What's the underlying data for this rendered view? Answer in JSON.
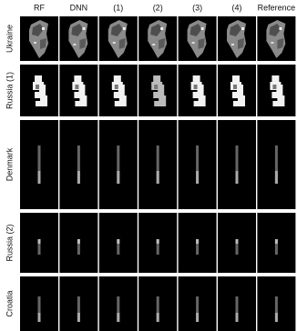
{
  "figure": {
    "columns": [
      "RF",
      "DNN",
      "(1)",
      "(2)",
      "(3)",
      "(4)",
      "Reference"
    ],
    "rows": [
      "Ukraine",
      "Russia (1)",
      "Denmark",
      "Russia (2)",
      "Croatia"
    ]
  }
}
